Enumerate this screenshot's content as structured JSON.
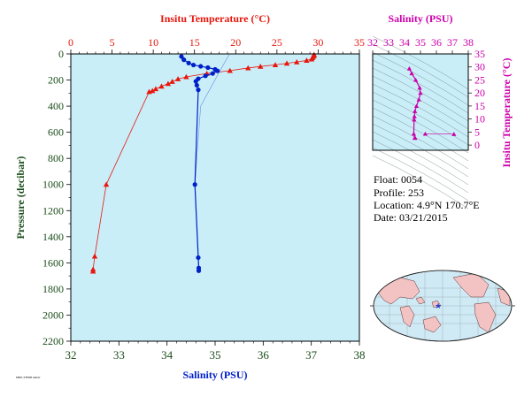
{
  "colors": {
    "plot_bg": "#c9eef8",
    "temperature": "#e8170d",
    "salinity": "#0020c8",
    "axis_bottom": "#1a4d1a",
    "magenta": "#cc00aa",
    "axis_left": "#1a4d1a"
  },
  "info": {
    "float": "Float: 0054",
    "profile": "Profile: 253",
    "location": "Location: 4.9°N 170.7°E",
    "date": "Date: 03/21/2015"
  },
  "footer": {
    "tiny_text": "PMEL/TFPDB ARGO"
  },
  "chart_data": [
    {
      "type": "line",
      "title": "",
      "x_top": {
        "label": "Insitu Temperature (°C)",
        "range": [
          0,
          35
        ],
        "ticks": [
          0,
          5,
          10,
          15,
          20,
          25,
          30,
          35
        ]
      },
      "x_bottom": {
        "label": "Salinity (PSU)",
        "range": [
          32,
          38
        ],
        "ticks": [
          32,
          33,
          34,
          35,
          36,
          37,
          38
        ]
      },
      "y": {
        "label": "Pressure (decibar)",
        "range": [
          0,
          2200
        ],
        "inverted": true,
        "ticks": [
          0,
          200,
          400,
          600,
          800,
          1000,
          1200,
          1400,
          1600,
          1800,
          2000,
          2200
        ]
      },
      "grid": false,
      "series": [
        {
          "name": "Insitu Temperature (°C)",
          "axis": "top",
          "marker": "triangle",
          "points": [
            [
              29.5,
              5
            ],
            [
              29.5,
              12
            ],
            [
              29.4,
              20
            ],
            [
              29.3,
              30
            ],
            [
              29.2,
              40
            ],
            [
              28.6,
              50
            ],
            [
              27.4,
              62
            ],
            [
              26.2,
              72
            ],
            [
              24.8,
              84
            ],
            [
              23.0,
              96
            ],
            [
              21.5,
              108
            ],
            [
              19.3,
              128
            ],
            [
              16.5,
              150
            ],
            [
              14.0,
              176
            ],
            [
              13.0,
              192
            ],
            [
              12.3,
              212
            ],
            [
              11.8,
              228
            ],
            [
              11.0,
              248
            ],
            [
              10.3,
              268
            ],
            [
              9.9,
              282
            ],
            [
              9.5,
              290
            ],
            [
              4.3,
              1000
            ],
            [
              2.9,
              1550
            ],
            [
              2.7,
              1650
            ],
            [
              2.7,
              1665
            ]
          ]
        },
        {
          "name": "Salinity (PSU)",
          "axis": "bottom",
          "marker": "circle",
          "points": [
            [
              34.3,
              20
            ],
            [
              34.35,
              45
            ],
            [
              34.45,
              70
            ],
            [
              34.55,
              85
            ],
            [
              34.7,
              95
            ],
            [
              34.85,
              105
            ],
            [
              35.0,
              118
            ],
            [
              35.05,
              130
            ],
            [
              34.95,
              150
            ],
            [
              34.8,
              168
            ],
            [
              34.65,
              190
            ],
            [
              34.6,
              210
            ],
            [
              34.62,
              240
            ],
            [
              34.65,
              275
            ],
            [
              34.58,
              1000
            ],
            [
              34.65,
              1560
            ],
            [
              34.66,
              1640
            ],
            [
              34.66,
              1660
            ]
          ]
        },
        {
          "name": "Salinity (PSU) secondary",
          "axis": "bottom",
          "marker": "none",
          "points": [
            [
              35.3,
              0
            ],
            [
              35.1,
              130
            ],
            [
              34.7,
              400
            ],
            [
              34.58,
              1000
            ],
            [
              34.65,
              1560
            ],
            [
              34.66,
              1660
            ]
          ]
        }
      ]
    },
    {
      "type": "scatter",
      "title": "",
      "x": {
        "label": "Salinity (PSU)",
        "range": [
          32,
          38
        ],
        "ticks": [
          32,
          33,
          34,
          35,
          36,
          37,
          38
        ],
        "tick_labels": [
          "32",
          "33",
          "34",
          "35",
          "36",
          "37",
          "38"
        ]
      },
      "y": {
        "label": "Insitu Temperature (°C)",
        "range": [
          -2,
          35
        ],
        "ticks": [
          0,
          5,
          10,
          15,
          20,
          25,
          30,
          35
        ]
      },
      "background_isopycnals": true,
      "points": [
        [
          34.3,
          29.4
        ],
        [
          34.45,
          27.5
        ],
        [
          34.7,
          25
        ],
        [
          34.95,
          22
        ],
        [
          35.0,
          20
        ],
        [
          34.9,
          17.5
        ],
        [
          34.75,
          15
        ],
        [
          34.65,
          13
        ],
        [
          34.62,
          11
        ],
        [
          34.6,
          9.8
        ],
        [
          34.58,
          4.3
        ],
        [
          34.65,
          2.9
        ],
        [
          34.66,
          2.7
        ]
      ],
      "surface_link": [
        [
          35.3,
          4.3
        ],
        [
          37.1,
          4.2
        ]
      ]
    }
  ]
}
